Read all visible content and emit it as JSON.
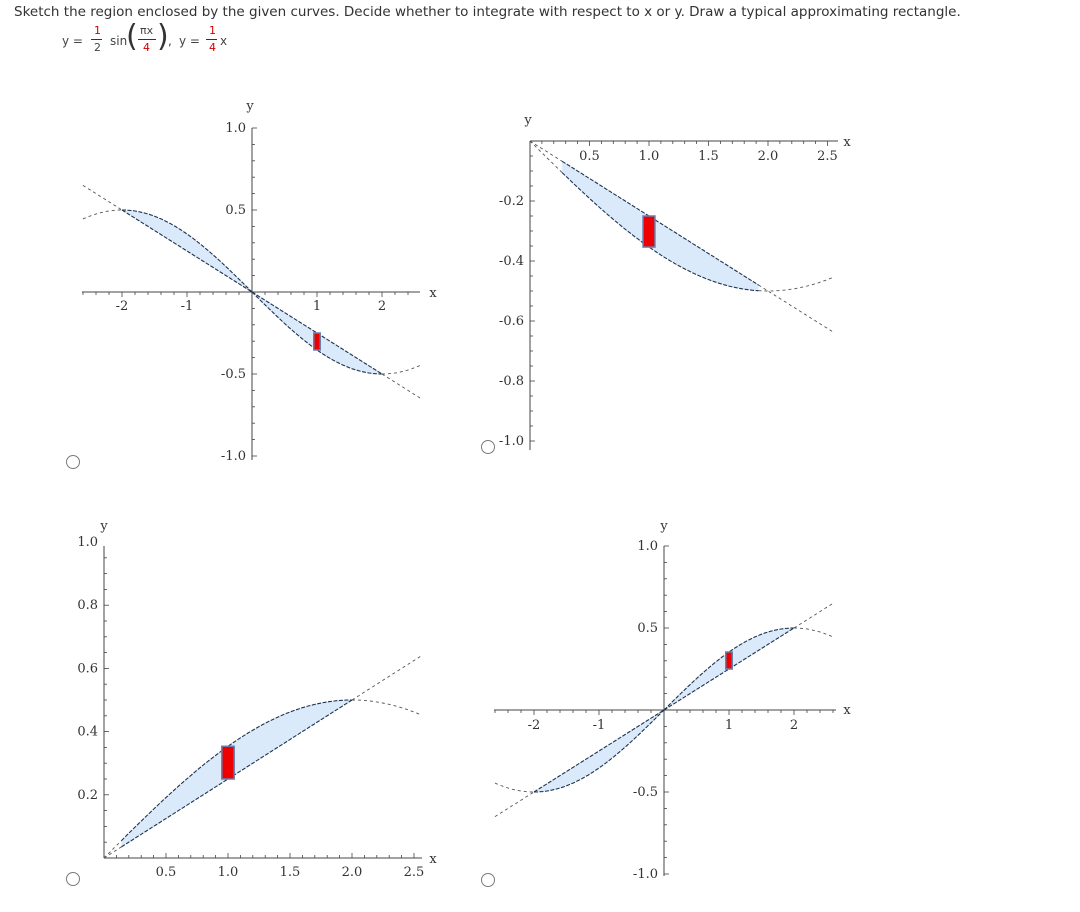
{
  "question": "Sketch the region enclosed by the given curves. Decide whether to integrate with respect to x or y. Draw a typical approximating rectangle.",
  "equation": {
    "y1_lhs": "y =",
    "y1_num": "1",
    "y1_den": "2",
    "y1_func": "sin",
    "y1_arg_num": "πx",
    "y1_arg_den": "4",
    "sep": ",",
    "y2_lhs": "y =",
    "y2_num": "1",
    "y2_den": "4",
    "y2_var": "x"
  },
  "options": [
    {
      "id": "A",
      "axis_labels": {
        "x": "x",
        "y": "y"
      },
      "x_ticks": [
        "-2",
        "-1",
        "1",
        "2"
      ],
      "y_ticks": [
        "1.0",
        "0.5",
        "-0.5",
        "-1.0"
      ]
    },
    {
      "id": "B",
      "axis_labels": {
        "x": "x",
        "y": "y"
      },
      "x_ticks": [
        "0.5",
        "1.0",
        "1.5",
        "2.0",
        "2.5"
      ],
      "y_ticks": [
        "-0.2",
        "-0.4",
        "-0.6",
        "-0.8",
        "-1.0"
      ]
    },
    {
      "id": "C",
      "axis_labels": {
        "x": "x",
        "y": "y"
      },
      "x_ticks": [
        "0.5",
        "1.0",
        "1.5",
        "2.0",
        "2.5"
      ],
      "y_ticks": [
        "1.0",
        "0.8",
        "0.6",
        "0.4",
        "0.2"
      ]
    },
    {
      "id": "D",
      "axis_labels": {
        "x": "x",
        "y": "y"
      },
      "x_ticks": [
        "-2",
        "-1",
        "1",
        "2"
      ],
      "y_ticks": [
        "1.0",
        "0.5",
        "-0.5",
        "-1.0"
      ]
    }
  ],
  "colors": {
    "region_fill": "#dbeafb",
    "curve": "#1e3550",
    "rectangle": "#ee0000",
    "rectangle_border": "#6a7fb0",
    "axis": "#444444"
  }
}
